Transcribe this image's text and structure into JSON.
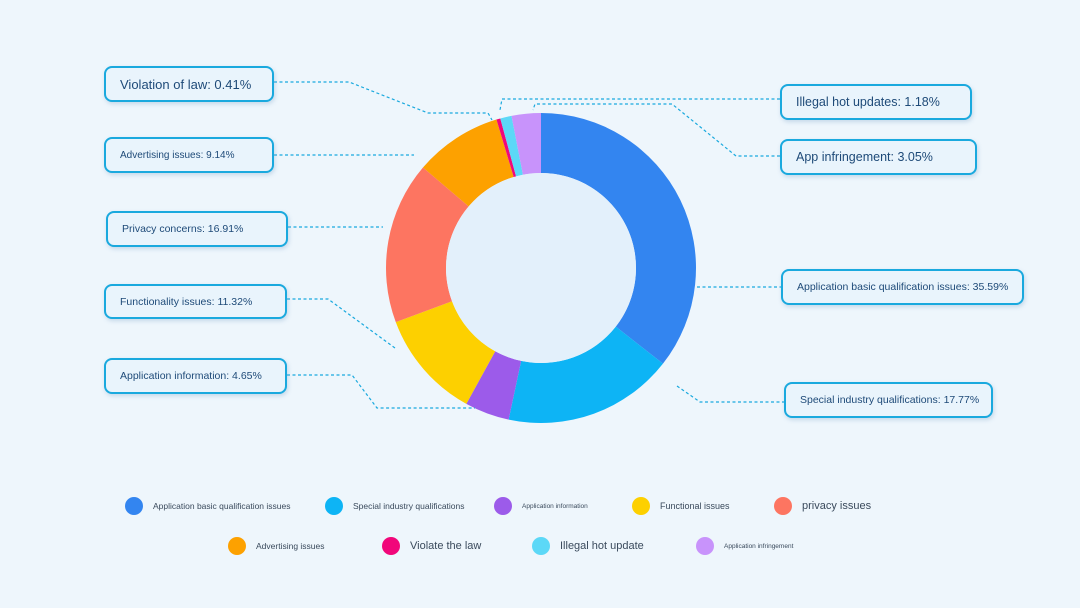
{
  "chart_data": {
    "type": "pie",
    "subtype": "donut",
    "slices": [
      {
        "label": "Application basic qualification issues",
        "value": 35.59,
        "color": "#3385f0",
        "callout": "Application basic qualification issues: 35.59%"
      },
      {
        "label": "Special industry qualifications",
        "value": 17.77,
        "color": "#0db4f5",
        "callout": "Special industry qualifications: 17.77%"
      },
      {
        "label": "Application information",
        "value": 4.65,
        "color": "#9c5bea",
        "callout": "Application information: 4.65%"
      },
      {
        "label": "Functional issues",
        "value": 11.32,
        "color": "#fdd000",
        "callout": "Functionality issues: 11.32%"
      },
      {
        "label": "privacy issues",
        "value": 16.91,
        "color": "#fd7561",
        "callout": "Privacy concerns: 16.91%"
      },
      {
        "label": "Advertising issues",
        "value": 9.14,
        "color": "#fda100",
        "callout": "Advertising issues: 9.14%"
      },
      {
        "label": "Violate the law",
        "value": 0.41,
        "color": "#f1077a",
        "callout": "Violation of law: 0.41%"
      },
      {
        "label": "Illegal hot update",
        "value": 1.18,
        "color": "#5cd8f7",
        "callout": "Illegal hot updates: 1.18%"
      },
      {
        "label": "Application infringement",
        "value": 3.05,
        "color": "#c893fb",
        "callout": "App infringement: 3.05%"
      }
    ],
    "legend_position": "bottom"
  }
}
